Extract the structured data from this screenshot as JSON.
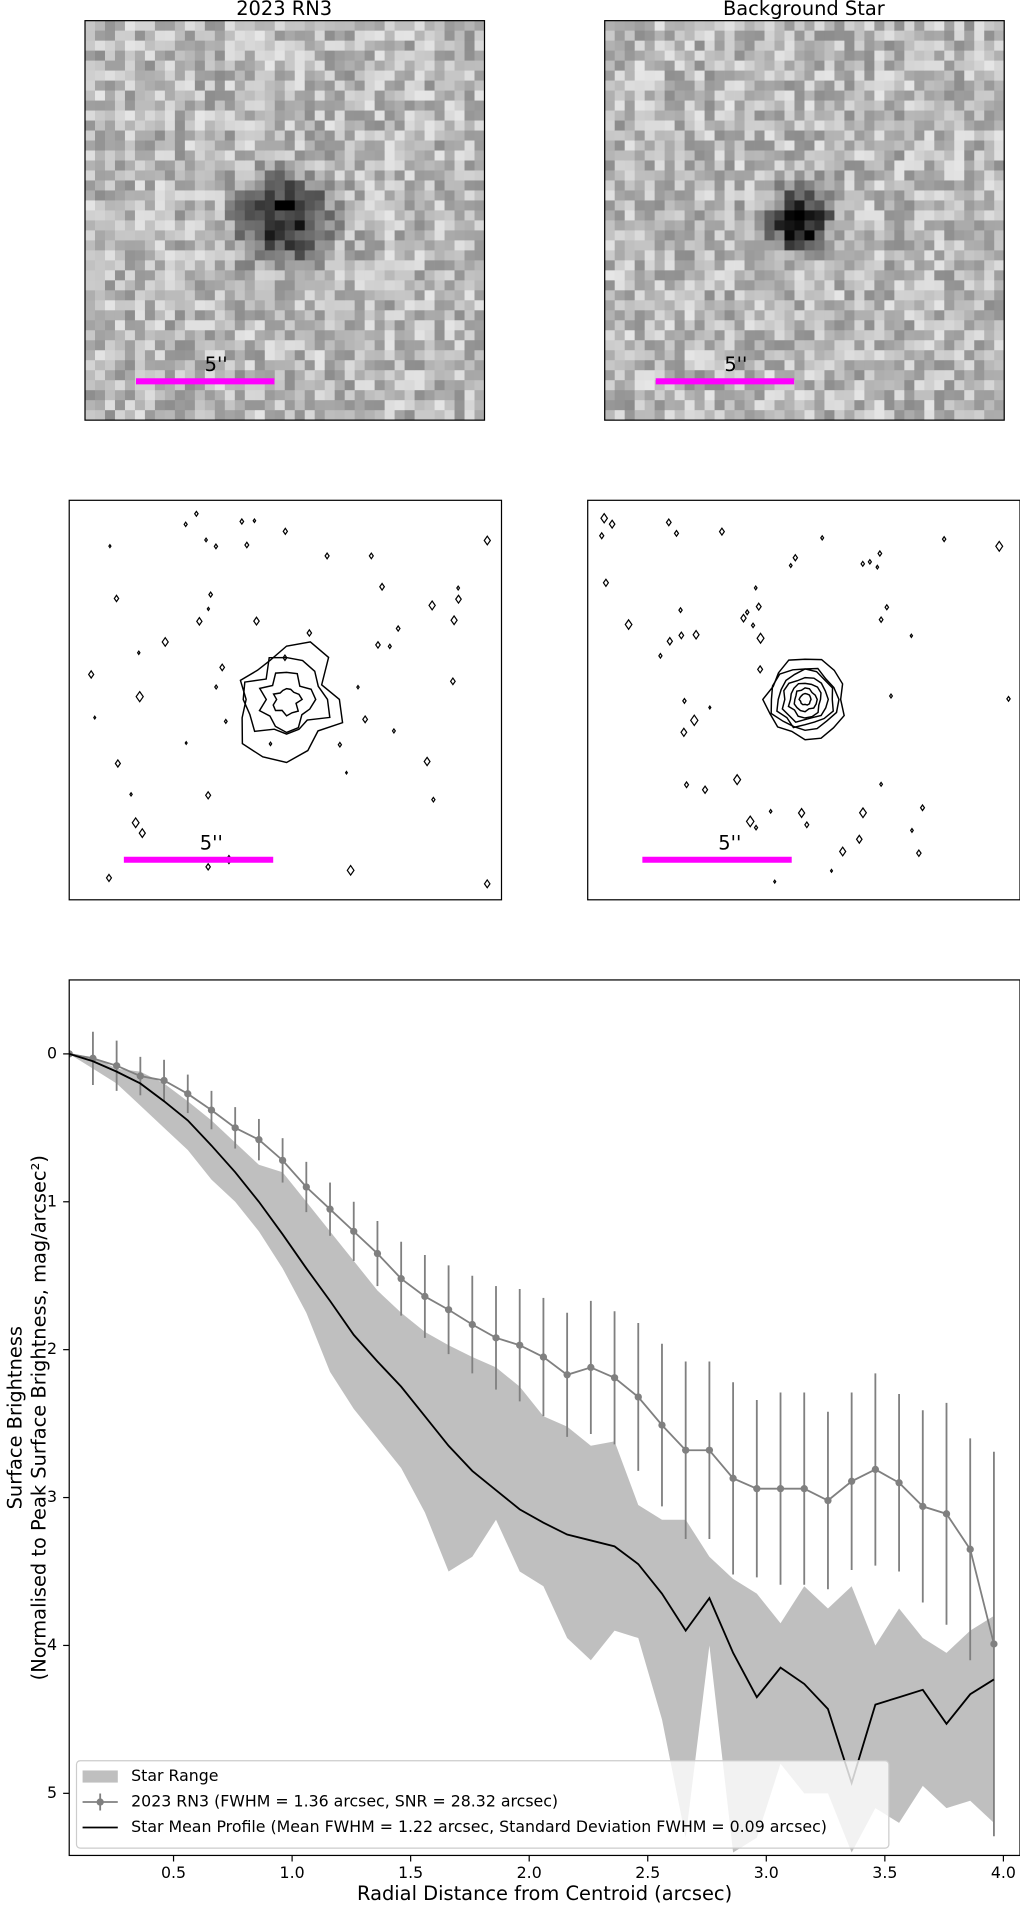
{
  "image_panels": {
    "titles": [
      "2023 RN3",
      "Background Star"
    ],
    "scale_bar_label": "5''"
  },
  "chart_data": {
    "type": "line",
    "xlabel": "Radial Distance from Centroid (arcsec)",
    "ylabel": [
      "Surface Brightness",
      "(Normalised to Peak Surface Brightness, mag/arcsec²)"
    ],
    "xlim": [
      0.06,
      4.07
    ],
    "ylim": [
      5.42,
      -0.5
    ],
    "xticks": [
      0.5,
      {
        "value": 1,
        "label": "1.0"
      },
      1.5,
      {
        "value": 2,
        "label": "2.0"
      },
      2.5,
      {
        "value": 3,
        "label": "3.0"
      },
      3.5,
      {
        "value": 4,
        "label": "4.0"
      }
    ],
    "yticks": [
      0,
      1,
      2,
      3,
      4,
      5
    ],
    "legend": "lower left",
    "x": [
      0.06,
      0.16,
      0.26,
      0.36,
      0.46,
      0.56,
      0.66,
      0.76,
      0.86,
      0.96,
      1.06,
      1.16,
      1.26,
      1.36,
      1.46,
      1.56,
      1.66,
      1.76,
      1.86,
      1.96,
      2.06,
      2.16,
      2.26,
      2.36,
      2.46,
      2.56,
      2.66,
      2.76,
      2.86,
      2.96,
      3.06,
      3.16,
      3.26,
      3.36,
      3.46,
      3.56,
      3.66,
      3.76,
      3.86,
      3.96
    ],
    "series": [
      {
        "name": "Star Range",
        "color": "#bfbfbf",
        "low": [
          0,
          0.02,
          0.1,
          0.12,
          0.2,
          0.32,
          0.45,
          0.6,
          0.75,
          0.8,
          1.0,
          1.2,
          1.4,
          1.6,
          1.75,
          1.88,
          1.97,
          2.05,
          2.12,
          2.25,
          2.45,
          2.52,
          2.65,
          2.62,
          3.05,
          3.15,
          3.15,
          3.4,
          3.55,
          3.65,
          3.85,
          3.6,
          3.75,
          3.6,
          4.0,
          3.75,
          3.95,
          4.05,
          3.9,
          3.8
        ],
        "high": [
          0,
          0.1,
          0.2,
          0.35,
          0.5,
          0.65,
          0.85,
          1.0,
          1.2,
          1.45,
          1.75,
          2.15,
          2.4,
          2.6,
          2.8,
          3.1,
          3.5,
          3.4,
          3.15,
          3.5,
          3.6,
          3.95,
          4.1,
          3.9,
          3.95,
          4.5,
          5.3,
          4.0,
          5.4,
          5.3,
          4.8,
          5.0,
          5.0,
          5.4,
          5.1,
          5.2,
          4.95,
          5.1,
          5.05,
          5.2
        ]
      },
      {
        "name": "2023 RN3 (FWHM = 1.36 arcsec, SNR = 28.32 arcsec)",
        "color": "#808080",
        "values": [
          0,
          0.03,
          0.08,
          0.15,
          0.18,
          0.27,
          0.38,
          0.5,
          0.58,
          0.72,
          0.9,
          1.05,
          1.2,
          1.35,
          1.52,
          1.64,
          1.73,
          1.83,
          1.92,
          1.97,
          2.05,
          2.17,
          2.12,
          2.19,
          2.32,
          2.51,
          2.68,
          2.68,
          2.87,
          2.94,
          2.94,
          2.94,
          3.02,
          2.89,
          2.81,
          2.9,
          3.06,
          3.11,
          3.35,
          3.99
        ],
        "errors": [
          0,
          0.18,
          0.17,
          0.13,
          0.14,
          0.13,
          0.13,
          0.14,
          0.14,
          0.15,
          0.17,
          0.18,
          0.2,
          0.22,
          0.25,
          0.28,
          0.3,
          0.33,
          0.35,
          0.38,
          0.4,
          0.42,
          0.45,
          0.45,
          0.5,
          0.55,
          0.6,
          0.6,
          0.65,
          0.6,
          0.65,
          0.65,
          0.6,
          0.6,
          0.65,
          0.6,
          0.65,
          0.75,
          0.75,
          1.3
        ]
      },
      {
        "name": "Star Mean Profile (Mean FWHM = 1.22 arcsec, Standard Deviation FWHM = 0.09 arcsec)",
        "color": "#000000",
        "values": [
          0,
          0.05,
          0.12,
          0.2,
          0.32,
          0.45,
          0.62,
          0.8,
          1.0,
          1.22,
          1.45,
          1.67,
          1.9,
          2.08,
          2.25,
          2.45,
          2.65,
          2.82,
          2.95,
          3.08,
          3.17,
          3.25,
          3.29,
          3.33,
          3.45,
          3.65,
          3.9,
          3.68,
          4.05,
          4.35,
          4.15,
          4.26,
          4.43,
          4.93,
          4.4,
          4.35,
          4.3,
          4.53,
          4.33,
          4.23
        ]
      }
    ]
  }
}
